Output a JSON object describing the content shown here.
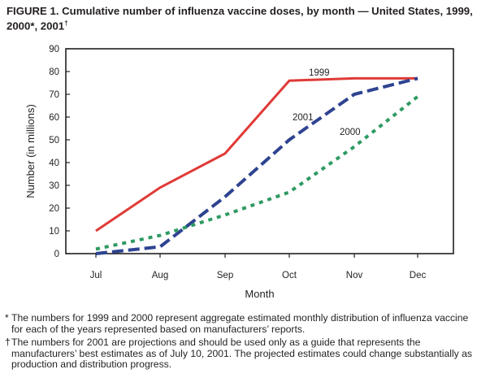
{
  "title": "FIGURE 1. Cumulative number of influenza vaccine doses, by month — United States, 1999, 2000*, 2001",
  "title_dagger": "†",
  "chart_data": {
    "type": "line",
    "title": "FIGURE 1. Cumulative number of influenza vaccine doses, by month — United States, 1999, 2000*, 2001†",
    "xlabel": "Month",
    "ylabel": "Number (in millions)",
    "categories": [
      "Jul",
      "Aug",
      "Sep",
      "Oct",
      "Nov",
      "Dec"
    ],
    "ylim": [
      0,
      90
    ],
    "yticks": [
      0,
      10,
      20,
      30,
      40,
      50,
      60,
      70,
      80,
      90
    ],
    "grid": false,
    "series": [
      {
        "name": "1999",
        "values": [
          10,
          29,
          44,
          76,
          77,
          77
        ],
        "color": "#e03a36",
        "style": "solid"
      },
      {
        "name": "2001",
        "values": [
          0,
          3,
          25,
          50,
          70,
          77
        ],
        "color": "#2e4390",
        "style": "dashed"
      },
      {
        "name": "2000",
        "values": [
          2,
          8,
          17,
          27,
          47,
          69
        ],
        "color": "#2e9a62",
        "style": "dotted"
      }
    ]
  },
  "footnotes": [
    {
      "mark": "*",
      "text": "The numbers for 1999 and 2000 represent aggregate estimated monthly distribution of influenza vaccine for each of the years represented based on manufacturers’ reports."
    },
    {
      "mark": "†",
      "text": "The numbers for 2001 are projections and should be used only as a guide that represents the manufacturers’ best estimates as of July 10, 2001. The projected estimates could change substantially as production and distribution progress."
    }
  ]
}
